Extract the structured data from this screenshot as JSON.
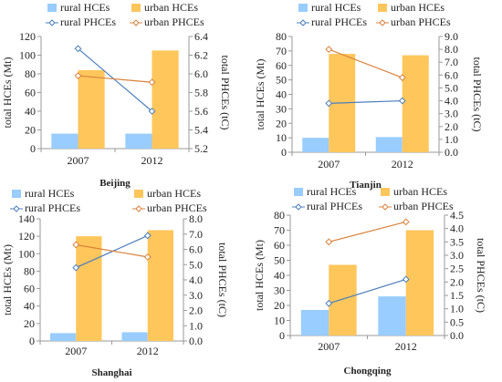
{
  "chart_data": [
    {
      "type": "bar+line",
      "title": "Beijing",
      "categories": [
        "2007",
        "2012"
      ],
      "ylabel": "total HCEs (Mt)",
      "ylabel_right": "total PHCEs (tC)",
      "ylim": [
        0,
        120
      ],
      "ylim_right": [
        5.2,
        6.4
      ],
      "yticks": [
        "0",
        "20",
        "40",
        "60",
        "80",
        "100",
        "120"
      ],
      "yticks_right": [
        "5.2",
        "5.4",
        "5.6",
        "5.8",
        "6.0",
        "6.2",
        "6.4"
      ],
      "series": [
        {
          "name": "rural HCEs",
          "kind": "bar",
          "axis": "left",
          "values": [
            16,
            16
          ]
        },
        {
          "name": "urban HCEs",
          "kind": "bar",
          "axis": "left",
          "values": [
            84,
            105
          ]
        },
        {
          "name": "rural PHCEs",
          "kind": "line",
          "axis": "right",
          "values": [
            6.27,
            5.6
          ]
        },
        {
          "name": "urban PHCEs",
          "kind": "line",
          "axis": "right",
          "values": [
            5.98,
            5.91
          ]
        }
      ],
      "legend": "top"
    },
    {
      "type": "bar+line",
      "title": "Tianjin",
      "categories": [
        "2007",
        "2012"
      ],
      "ylabel": "total HCEs (Mt)",
      "ylabel_right": "total PHCEs (tC)",
      "ylim": [
        0,
        80
      ],
      "ylim_right": [
        0,
        9
      ],
      "yticks": [
        "0",
        "10",
        "20",
        "30",
        "40",
        "50",
        "60",
        "70",
        "80"
      ],
      "yticks_right": [
        "0.0",
        "1.0",
        "2.0",
        "3.0",
        "4.0",
        "5.0",
        "6.0",
        "7.0",
        "8.0",
        "9.0"
      ],
      "series": [
        {
          "name": "rural HCEs",
          "kind": "bar",
          "axis": "left",
          "values": [
            10,
            10.5
          ]
        },
        {
          "name": "urban HCEs",
          "kind": "bar",
          "axis": "left",
          "values": [
            68,
            67
          ]
        },
        {
          "name": "rural PHCEs",
          "kind": "line",
          "axis": "right",
          "values": [
            3.8,
            4.0
          ]
        },
        {
          "name": "urban PHCEs",
          "kind": "line",
          "axis": "right",
          "values": [
            8.0,
            5.8
          ]
        }
      ],
      "legend": "top"
    },
    {
      "type": "bar+line",
      "title": "Shanghai",
      "categories": [
        "2007",
        "2012"
      ],
      "ylabel": "total HCEs (Mt)",
      "ylabel_right": "total PHCEs (tC)",
      "ylim": [
        0,
        140
      ],
      "ylim_right": [
        0,
        8
      ],
      "yticks": [
        "0",
        "20",
        "40",
        "60",
        "80",
        "100",
        "120",
        "140"
      ],
      "yticks_right": [
        "0.0",
        "1.0",
        "2.0",
        "3.0",
        "4.0",
        "5.0",
        "6.0",
        "7.0",
        "8.0"
      ],
      "series": [
        {
          "name": "rural HCEs",
          "kind": "bar",
          "axis": "left",
          "values": [
            9,
            10
          ]
        },
        {
          "name": "urban HCEs",
          "kind": "bar",
          "axis": "left",
          "values": [
            120,
            127
          ]
        },
        {
          "name": "rural PHCEs",
          "kind": "line",
          "axis": "right",
          "values": [
            4.8,
            6.9
          ]
        },
        {
          "name": "urban PHCEs",
          "kind": "line",
          "axis": "right",
          "values": [
            6.3,
            5.5
          ]
        }
      ],
      "legend": "top"
    },
    {
      "type": "bar+line",
      "title": "Chongqing",
      "categories": [
        "2007",
        "2012"
      ],
      "ylabel": "total HCEs (Mt)",
      "ylabel_right": "total PHCEs (tC)",
      "ylim": [
        0,
        80
      ],
      "ylim_right": [
        0,
        4.5
      ],
      "yticks": [
        "0",
        "10",
        "20",
        "30",
        "40",
        "50",
        "60",
        "70",
        "80"
      ],
      "yticks_right": [
        "0.0",
        "0.5",
        "1.0",
        "1.5",
        "2.0",
        "2.5",
        "3.0",
        "3.5",
        "4.0",
        "4.5"
      ],
      "series": [
        {
          "name": "rural HCEs",
          "kind": "bar",
          "axis": "left",
          "values": [
            17,
            26
          ]
        },
        {
          "name": "urban HCEs",
          "kind": "bar",
          "axis": "left",
          "values": [
            47,
            70
          ]
        },
        {
          "name": "rural PHCEs",
          "kind": "line",
          "axis": "right",
          "values": [
            1.2,
            2.1
          ]
        },
        {
          "name": "urban PHCEs",
          "kind": "line",
          "axis": "right",
          "values": [
            3.5,
            4.25
          ]
        }
      ],
      "legend": "top"
    }
  ],
  "colors": {
    "rural_bar": "#99CCFF",
    "urban_bar": "#FFC65C",
    "rural_line": "#4A7EBB",
    "urban_line": "#D9823B",
    "axis": "#9A9A9A"
  }
}
